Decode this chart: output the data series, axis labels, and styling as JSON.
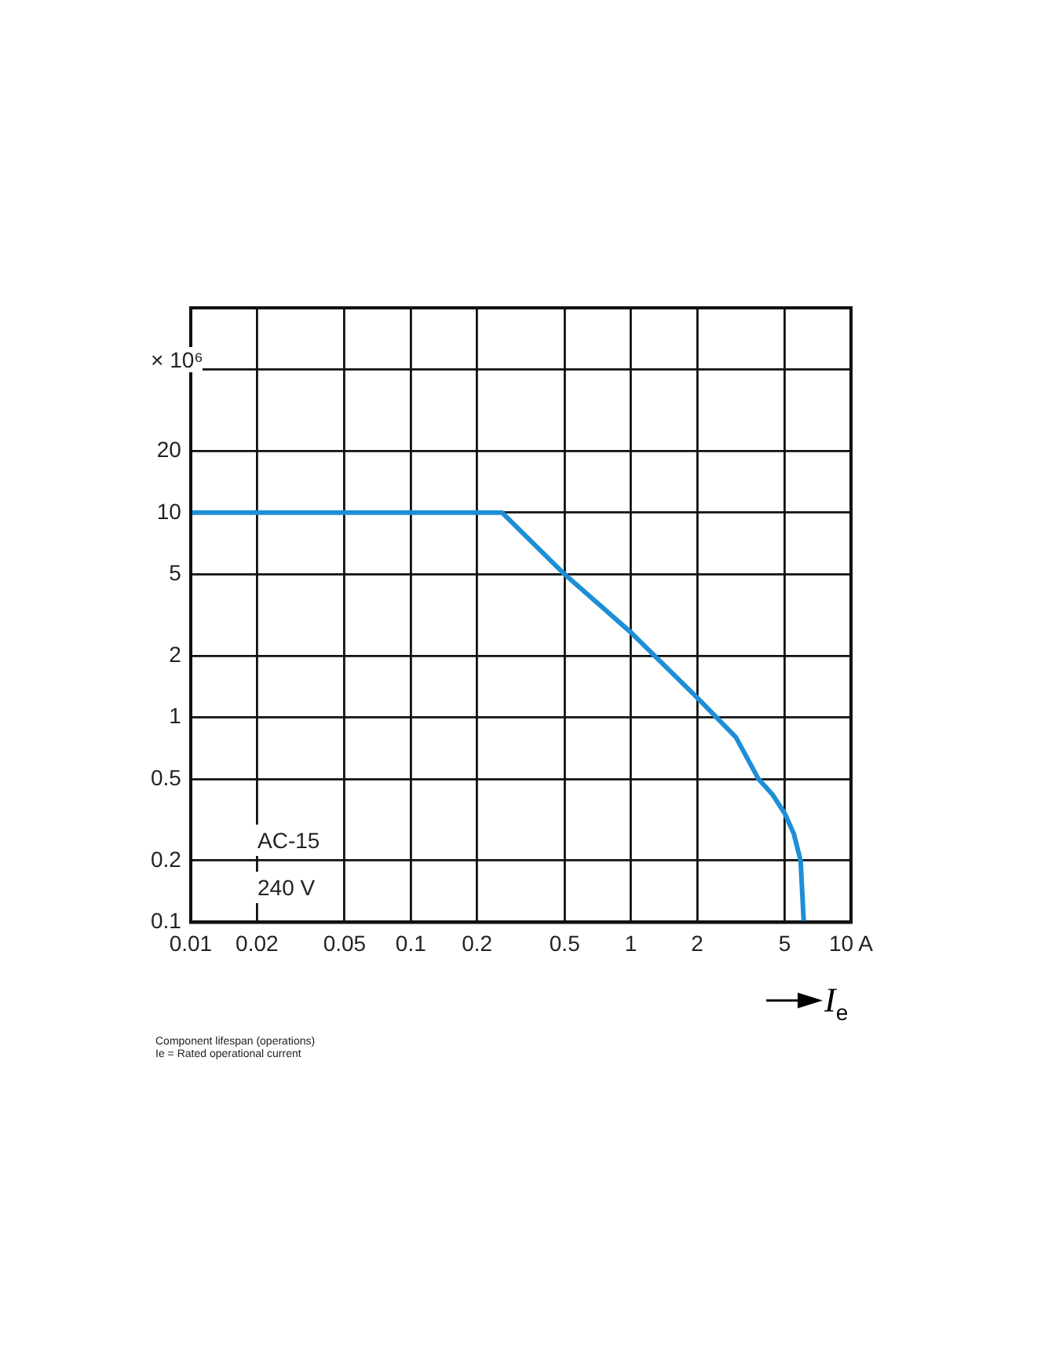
{
  "chart_data": {
    "type": "line",
    "xlabel": "I$_{e}$",
    "log": "xy",
    "grid": true,
    "legend": false,
    "marker": "none",
    "line_style": "solid",
    "xlim": [
      0.01,
      10
    ],
    "xticks": [
      0.01,
      0.02,
      0.05,
      0.1,
      0.2,
      0.5,
      1,
      2,
      5,
      {
        "value": 10,
        "label": "10 A"
      }
    ],
    "ylabel": "× 10⁶",
    "ylim": [
      0.1,
      100
    ],
    "yticks": [
      0.1,
      0.2,
      0.5,
      1,
      2,
      5,
      10,
      20,
      {
        "value": 50,
        "label": null
      },
      {
        "value": 100,
        "label": null
      }
    ],
    "x": [
      0.01,
      0.26,
      0.5,
      1,
      2,
      3,
      3.8,
      4.4,
      5,
      5.5,
      5.9,
      6.1
    ],
    "series": [
      {
        "color": "#1e8fd6",
        "values": [
          10,
          10,
          5,
          2.6,
          1.25,
          0.8,
          0.5,
          0.42,
          0.34,
          0.27,
          0.2,
          0.1
        ]
      }
    ],
    "annotations": [
      "AC-15",
      "240 V",
      "Component lifespan (operations)",
      "Ie = Rated operational current"
    ]
  }
}
